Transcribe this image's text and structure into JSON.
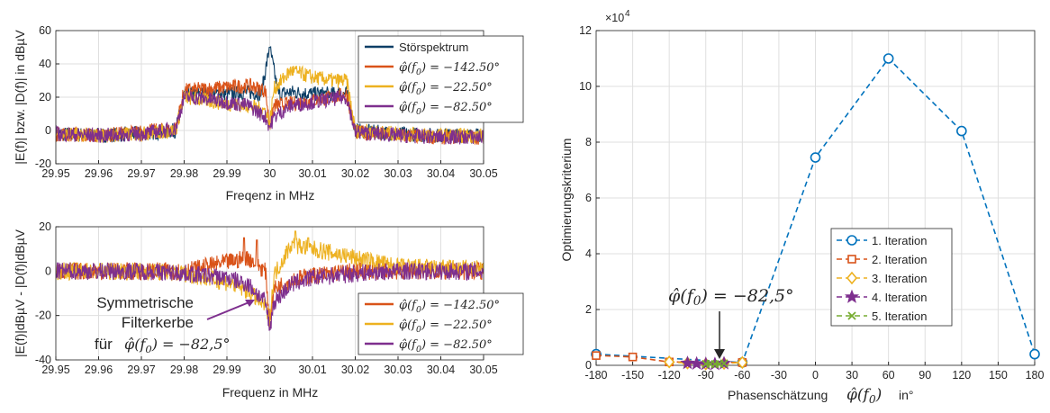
{
  "chart_data": [
    {
      "type": "line",
      "panel": "top-left",
      "xlabel": "Freqenz in MHz",
      "ylabel": "|E(f)| bzw. |D(f)| in dBµV",
      "xlim": [
        29.95,
        30.05
      ],
      "ylim": [
        -20,
        60
      ],
      "xticks": [
        "29.95",
        "29.96",
        "29.97",
        "29.98",
        "29.99",
        "30",
        "30.01",
        "30.02",
        "30.03",
        "30.04",
        "30.05"
      ],
      "yticks": [
        "-20",
        "0",
        "20",
        "40",
        "60"
      ],
      "grid": true,
      "legend_position": "top-right",
      "series": [
        {
          "name": "Störspektrum",
          "color": "#0d3f66",
          "points": [
            [
              29.95,
              -2
            ],
            [
              29.96,
              -3
            ],
            [
              29.97,
              -2
            ],
            [
              29.978,
              0
            ],
            [
              29.98,
              22
            ],
            [
              29.985,
              22
            ],
            [
              29.99,
              22
            ],
            [
              29.995,
              23
            ],
            [
              29.998,
              22
            ],
            [
              30,
              50
            ],
            [
              30.002,
              22
            ],
            [
              30.005,
              23
            ],
            [
              30.01,
              22
            ],
            [
              30.015,
              22
            ],
            [
              30.018,
              22
            ],
            [
              30.02,
              0
            ],
            [
              30.03,
              -2
            ],
            [
              30.04,
              -3
            ],
            [
              30.05,
              -3
            ]
          ]
        },
        {
          "name": "φ̂(f0) = −142.50°",
          "color": "#d95319",
          "points": [
            [
              29.95,
              -2
            ],
            [
              29.96,
              -3
            ],
            [
              29.97,
              -1
            ],
            [
              29.978,
              1
            ],
            [
              29.98,
              24
            ],
            [
              29.985,
              25
            ],
            [
              29.99,
              26
            ],
            [
              29.995,
              27
            ],
            [
              29.999,
              24
            ],
            [
              30,
              3
            ],
            [
              30.001,
              15
            ],
            [
              30.005,
              16
            ],
            [
              30.01,
              18
            ],
            [
              30.015,
              20
            ],
            [
              30.018,
              22
            ],
            [
              30.02,
              -1
            ],
            [
              30.03,
              -3
            ],
            [
              30.04,
              -4
            ],
            [
              30.05,
              -4
            ]
          ]
        },
        {
          "name": "φ̂(f0) = −22.50°",
          "color": "#edb120",
          "points": [
            [
              29.95,
              -2
            ],
            [
              29.96,
              -3
            ],
            [
              29.97,
              -2
            ],
            [
              29.978,
              0
            ],
            [
              29.98,
              20
            ],
            [
              29.985,
              18
            ],
            [
              29.99,
              16
            ],
            [
              29.995,
              15
            ],
            [
              29.999,
              12
            ],
            [
              30,
              4
            ],
            [
              30.001,
              25
            ],
            [
              30.005,
              36
            ],
            [
              30.01,
              32
            ],
            [
              30.015,
              30
            ],
            [
              30.018,
              30
            ],
            [
              30.02,
              0
            ],
            [
              30.03,
              -2
            ],
            [
              30.04,
              -3
            ],
            [
              30.05,
              -3
            ]
          ]
        },
        {
          "name": "φ̂(f0) = −82.50°",
          "color": "#7e2f8e",
          "points": [
            [
              29.95,
              -2
            ],
            [
              29.96,
              -3
            ],
            [
              29.97,
              -2
            ],
            [
              29.978,
              1
            ],
            [
              29.98,
              20
            ],
            [
              29.985,
              19
            ],
            [
              29.99,
              17
            ],
            [
              29.995,
              15
            ],
            [
              29.999,
              8
            ],
            [
              30,
              2
            ],
            [
              30.001,
              8
            ],
            [
              30.005,
              15
            ],
            [
              30.01,
              17
            ],
            [
              30.015,
              19
            ],
            [
              30.018,
              20
            ],
            [
              30.02,
              -1
            ],
            [
              30.03,
              -3
            ],
            [
              30.04,
              -4
            ],
            [
              30.05,
              -4
            ]
          ]
        }
      ]
    },
    {
      "type": "line",
      "panel": "bottom-left",
      "xlabel": "Frequenz in MHz",
      "ylabel": "|E(f)|dBµV - |D(f)|dBµV",
      "xlim": [
        29.95,
        30.05
      ],
      "ylim": [
        -40,
        20
      ],
      "xticks": [
        "29.95",
        "29.96",
        "29.97",
        "29.98",
        "29.99",
        "30",
        "30.01",
        "30.02",
        "30.03",
        "30.04",
        "30.05"
      ],
      "yticks": [
        "-40",
        "-20",
        "0",
        "20"
      ],
      "grid": true,
      "legend_position": "bottom-right",
      "series": [
        {
          "name": "φ̂(f0) = −142.50°",
          "color": "#d95319",
          "points": [
            [
              29.95,
              0
            ],
            [
              29.97,
              0
            ],
            [
              29.98,
              0
            ],
            [
              29.985,
              2
            ],
            [
              29.99,
              4
            ],
            [
              29.995,
              6
            ],
            [
              29.999,
              0
            ],
            [
              30,
              -22
            ],
            [
              30.001,
              -8
            ],
            [
              30.005,
              -4
            ],
            [
              30.01,
              -2
            ],
            [
              30.015,
              -1
            ],
            [
              30.02,
              0
            ],
            [
              30.03,
              0
            ],
            [
              30.05,
              0
            ]
          ]
        },
        {
          "name": "φ̂(f0) = −22.50°",
          "color": "#edb120",
          "points": [
            [
              29.95,
              0
            ],
            [
              29.97,
              0
            ],
            [
              29.98,
              -1
            ],
            [
              29.985,
              -3
            ],
            [
              29.99,
              -5
            ],
            [
              29.995,
              -9
            ],
            [
              29.999,
              -16
            ],
            [
              30,
              -22
            ],
            [
              30.001,
              -2
            ],
            [
              30.005,
              12
            ],
            [
              30.01,
              10
            ],
            [
              30.015,
              8
            ],
            [
              30.02,
              6
            ],
            [
              30.03,
              2
            ],
            [
              30.05,
              1
            ]
          ]
        },
        {
          "name": "φ̂(f0) = −82.50°",
          "color": "#7e2f8e",
          "points": [
            [
              29.95,
              0
            ],
            [
              29.97,
              0
            ],
            [
              29.98,
              -1
            ],
            [
              29.985,
              -2
            ],
            [
              29.99,
              -3
            ],
            [
              29.995,
              -6
            ],
            [
              29.999,
              -14
            ],
            [
              30,
              -26
            ],
            [
              30.001,
              -14
            ],
            [
              30.005,
              -6
            ],
            [
              30.01,
              -3
            ],
            [
              30.015,
              -2
            ],
            [
              30.02,
              -1
            ],
            [
              30.03,
              0
            ],
            [
              30.05,
              0
            ]
          ]
        }
      ],
      "annotation": {
        "line1": "Symmetrische",
        "line2": "Filterkerbe",
        "line3_prefix": "für",
        "line3_math": "φ̂(f0) = −82,5°"
      }
    },
    {
      "type": "line",
      "panel": "right",
      "xlabel_prefix": "Phasenschätzung",
      "xlabel_math": "φ̂(f0)",
      "xlabel_suffix": "in°",
      "ylabel": "Optimierungskriterium",
      "y_exponent": "×10",
      "y_exponent_power": "4",
      "xlim": [
        -180,
        180
      ],
      "ylim": [
        0,
        12
      ],
      "xticks": [
        "-180",
        "-150",
        "-120",
        "-90",
        "-60",
        "-30",
        "0",
        "30",
        "60",
        "90",
        "120",
        "150",
        "180"
      ],
      "yticks": [
        "0",
        "2",
        "4",
        "6",
        "8",
        "10",
        "12"
      ],
      "grid": true,
      "legend_position": "center-right",
      "series": [
        {
          "name": "1. Iteration",
          "color": "#0072bd",
          "marker": "circle",
          "x": [
            -180,
            -60,
            0,
            60,
            120,
            180
          ],
          "y": [
            0.4,
            0.1,
            7.45,
            11.0,
            8.4,
            0.4
          ]
        },
        {
          "name": "2. Iteration",
          "color": "#d95319",
          "marker": "square",
          "x": [
            -180,
            -150,
            -120,
            -60
          ],
          "y": [
            0.35,
            0.3,
            0.12,
            0.1
          ]
        },
        {
          "name": "3. Iteration",
          "color": "#edb120",
          "marker": "diamond",
          "x": [
            -120,
            -105,
            -90,
            -75,
            -60
          ],
          "y": [
            0.12,
            0.08,
            0.05,
            0.07,
            0.1
          ]
        },
        {
          "name": "4. Iteration",
          "color": "#7e2f8e",
          "marker": "star",
          "x": [
            -105,
            -97.5,
            -90,
            -82.5,
            -75
          ],
          "y": [
            0.08,
            0.06,
            0.05,
            0.045,
            0.07
          ]
        },
        {
          "name": "5. Iteration",
          "color": "#77ac30",
          "marker": "x",
          "x": [
            -90,
            -86.25,
            -82.5,
            -78.75,
            -75
          ],
          "y": [
            0.05,
            0.047,
            0.045,
            0.05,
            0.07
          ]
        }
      ],
      "annotation": {
        "math": "φ̂(f0) = −82,5°"
      }
    }
  ]
}
